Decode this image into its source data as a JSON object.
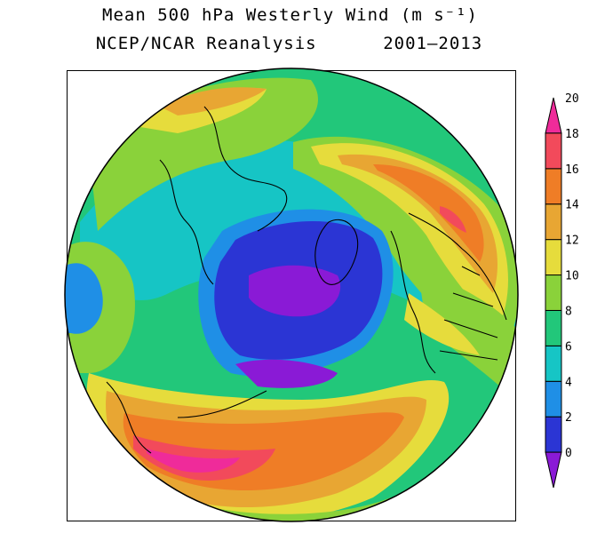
{
  "title": {
    "line1": "Mean 500 hPa Westerly Wind (m s⁻¹)",
    "line2": "NCEP/NCAR Reanalysis      2001–2013"
  },
  "colorbar": {
    "levels": [
      "0",
      "2",
      "4",
      "6",
      "8",
      "10",
      "12",
      "14",
      "16",
      "18",
      "20"
    ],
    "colors": [
      "#8a1ad6",
      "#2b35d4",
      "#1f8fe6",
      "#16c5c5",
      "#22c77a",
      "#8ad23a",
      "#e6dc3c",
      "#e8a633",
      "#ef7d26",
      "#f24a5b",
      "#ef2b9a"
    ]
  },
  "map": {
    "projection": "north-polar-stereographic",
    "field": "500 hPa westerly wind speed"
  }
}
